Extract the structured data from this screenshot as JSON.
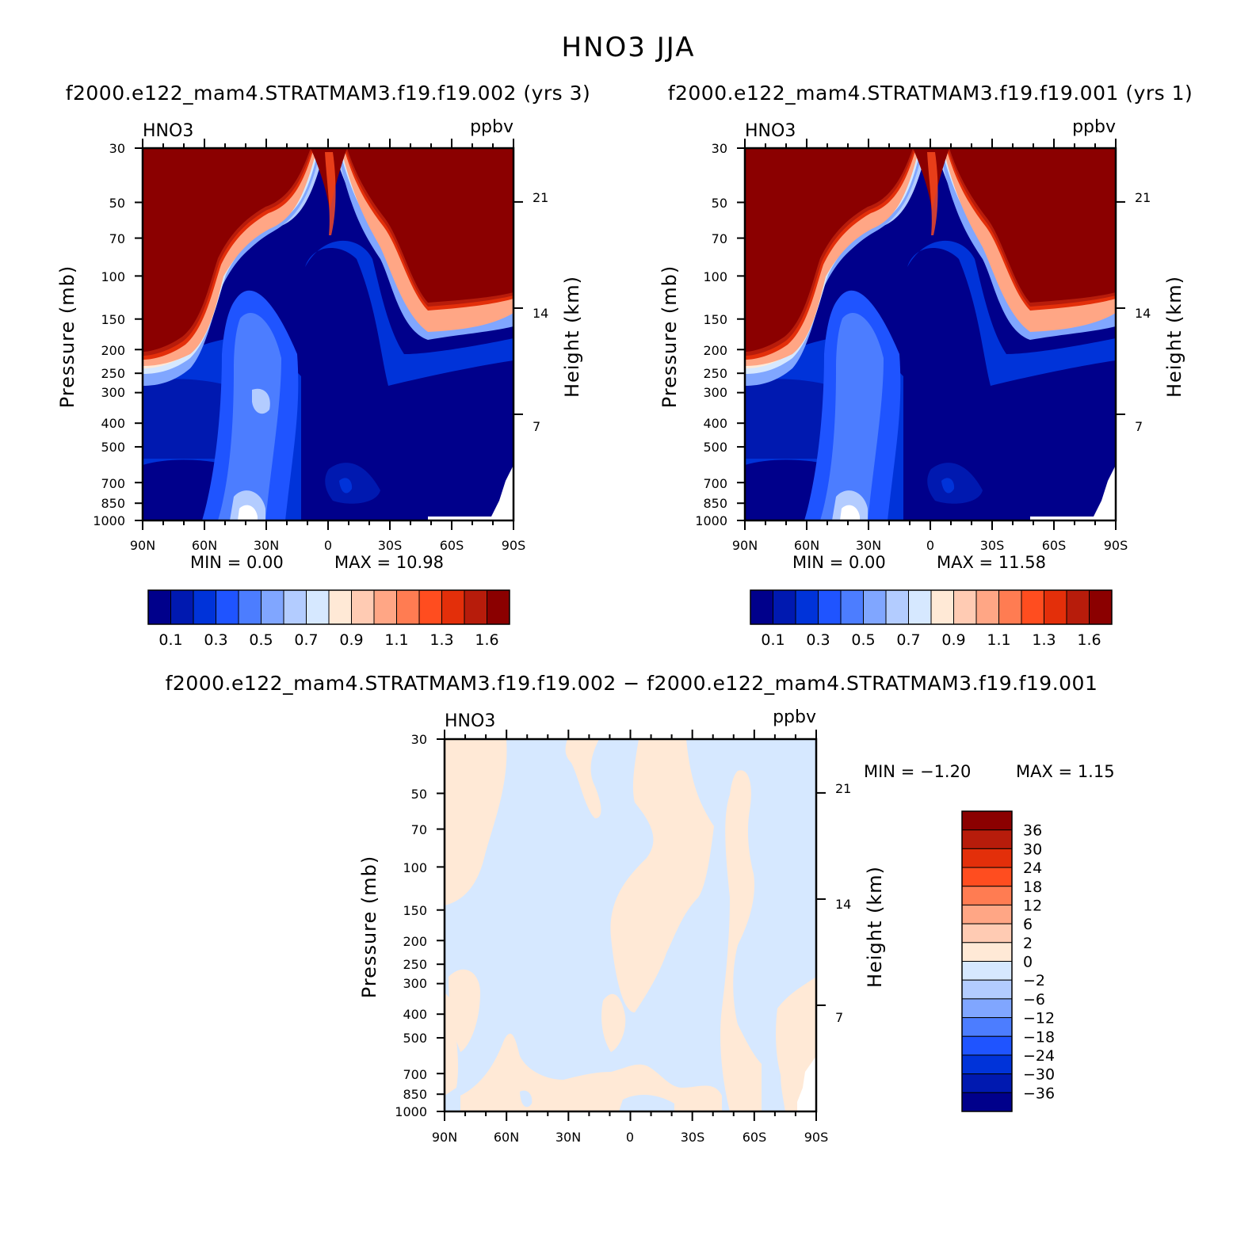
{
  "figure_title": "HNO3  JJA",
  "chart_data": [
    {
      "type": "heatmap",
      "title": "f2000.e122_mam4.STRATMAM3.f19.f19.002  (yrs  3)",
      "variable": "HNO3",
      "units": "ppbv",
      "ylabel": "Pressure  (mb)",
      "ylabel_right": "Height  (km)",
      "x_ticks": [
        "90N",
        "60N",
        "30N",
        "0",
        "30S",
        "60S",
        "90S"
      ],
      "y_ticks": [
        "30",
        "50",
        "70",
        "100",
        "150",
        "200",
        "250",
        "300",
        "400",
        "500",
        "700",
        "850",
        "1000"
      ],
      "y_ticks_right": [
        "21",
        "14",
        "7"
      ],
      "y_scale": "log",
      "ylim": [
        1000,
        30
      ],
      "min_text": "MIN  =     0.00",
      "max_text": "MAX  =    10.98",
      "colorbar_labels": [
        "0.1",
        "0.3",
        "0.5",
        "0.7",
        "0.9",
        "1.1",
        "1.3",
        "1.6"
      ],
      "colorbar_colors": [
        "#00008b",
        "#0019b0",
        "#0033d9",
        "#1f54ff",
        "#4c7dff",
        "#80a6ff",
        "#b3ccff",
        "#d6e8ff",
        "#ffe9d6",
        "#ffcbb3",
        "#ffa685",
        "#ff7c52",
        "#ff4d1f",
        "#e32f0a",
        "#b71c0b",
        "#8b0000"
      ]
    },
    {
      "type": "heatmap",
      "title": "f2000.e122_mam4.STRATMAM3.f19.f19.001  (yrs  1)",
      "variable": "HNO3",
      "units": "ppbv",
      "ylabel": "Pressure  (mb)",
      "ylabel_right": "Height  (km)",
      "x_ticks": [
        "90N",
        "60N",
        "30N",
        "0",
        "30S",
        "60S",
        "90S"
      ],
      "y_ticks": [
        "30",
        "50",
        "70",
        "100",
        "150",
        "200",
        "250",
        "300",
        "400",
        "500",
        "700",
        "850",
        "1000"
      ],
      "y_ticks_right": [
        "21",
        "14",
        "7"
      ],
      "y_scale": "log",
      "ylim": [
        1000,
        30
      ],
      "min_text": "MIN  =     0.00",
      "max_text": "MAX  =    11.58",
      "colorbar_labels": [
        "0.1",
        "0.3",
        "0.5",
        "0.7",
        "0.9",
        "1.1",
        "1.3",
        "1.6"
      ],
      "colorbar_colors": [
        "#00008b",
        "#0019b0",
        "#0033d9",
        "#1f54ff",
        "#4c7dff",
        "#80a6ff",
        "#b3ccff",
        "#d6e8ff",
        "#ffe9d6",
        "#ffcbb3",
        "#ffa685",
        "#ff7c52",
        "#ff4d1f",
        "#e32f0a",
        "#b71c0b",
        "#8b0000"
      ]
    },
    {
      "type": "heatmap",
      "title": "f2000.e122_mam4.STRATMAM3.f19.f19.002  −  f2000.e122_mam4.STRATMAM3.f19.f19.001",
      "variable": "HNO3",
      "units": "ppbv",
      "ylabel": "Pressure  (mb)",
      "ylabel_right": "Height  (km)",
      "x_ticks": [
        "90N",
        "60N",
        "30N",
        "0",
        "30S",
        "60S",
        "90S"
      ],
      "y_ticks": [
        "30",
        "50",
        "70",
        "100",
        "150",
        "200",
        "250",
        "300",
        "400",
        "500",
        "700",
        "850",
        "1000"
      ],
      "y_ticks_right": [
        "21",
        "14",
        "7"
      ],
      "y_scale": "log",
      "ylim": [
        1000,
        30
      ],
      "min_text": "MIN  =    −1.20",
      "max_text": "MAX  =     1.15",
      "colorbar_labels": [
        "36",
        "30",
        "24",
        "18",
        "12",
        "6",
        "2",
        "0",
        "−2",
        "−6",
        "−12",
        "−18",
        "−24",
        "−30",
        "−36"
      ],
      "colorbar_colors": [
        "#8b0000",
        "#b71c0b",
        "#e32f0a",
        "#ff4d1f",
        "#ff7c52",
        "#ffa685",
        "#ffcbb3",
        "#ffe9d6",
        "#d6e8ff",
        "#b3ccff",
        "#80a6ff",
        "#4c7dff",
        "#1f54ff",
        "#0033d9",
        "#0019b0",
        "#00008b"
      ]
    }
  ]
}
